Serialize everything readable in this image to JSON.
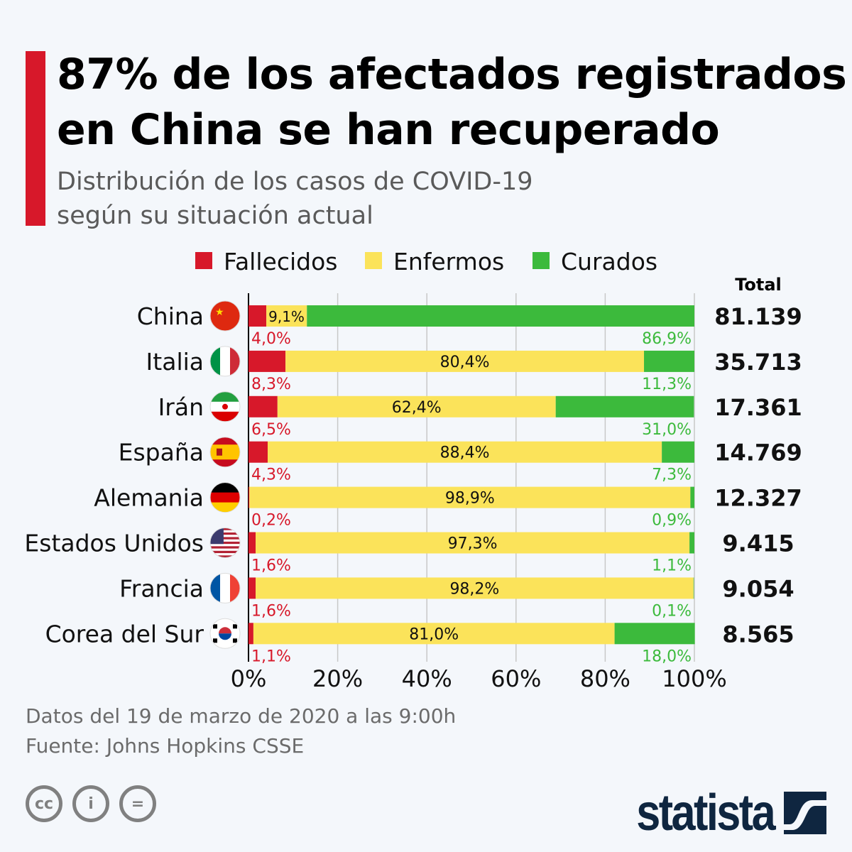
{
  "header": {
    "title_line1": "87% de los afectados registrados",
    "title_line2": "en China se han recuperado",
    "subtitle_line1": "Distribución de los casos de COVID-19",
    "subtitle_line2": "según su situación actual"
  },
  "footer": {
    "date_note": "Datos del 19 de marzo de 2020 a las 9:00h",
    "source": "Fuente: Johns Hopkins CSSE",
    "brand": "statista",
    "license_icons": [
      "cc-icon",
      "attribution-icon",
      "no-derivatives-icon"
    ]
  },
  "colors": {
    "fallecidos": "#d7182a",
    "enfermos": "#fbe35a",
    "curados": "#3cba3c",
    "accent": "#d7182a"
  },
  "chart_data": {
    "type": "bar",
    "orientation": "horizontal",
    "stacked": "100%",
    "categories": [
      "China",
      "Italia",
      "Irán",
      "España",
      "Alemania",
      "Estados Unidos",
      "Francia",
      "Corea del Sur"
    ],
    "series": [
      {
        "name": "Fallecidos",
        "values": [
          4.0,
          8.3,
          6.5,
          4.3,
          0.2,
          1.6,
          1.6,
          1.1
        ],
        "labels": [
          "4,0%",
          "8,3%",
          "6,5%",
          "4,3%",
          "0,2%",
          "1,6%",
          "1,6%",
          "1,1%"
        ]
      },
      {
        "name": "Enfermos",
        "values": [
          9.1,
          80.4,
          62.4,
          88.4,
          98.9,
          97.3,
          98.2,
          81.0
        ],
        "labels": [
          "9,1%",
          "80,4%",
          "62,4%",
          "88,4%",
          "98,9%",
          "97,3%",
          "98,2%",
          "81,0%"
        ]
      },
      {
        "name": "Curados",
        "values": [
          86.9,
          11.3,
          31.0,
          7.3,
          0.9,
          1.1,
          0.1,
          18.0
        ],
        "labels": [
          "86,9%",
          "11,3%",
          "31,0%",
          "7,3%",
          "0,9%",
          "1,1%",
          "0,1%",
          "18,0%"
        ]
      }
    ],
    "totals_header": "Total",
    "totals": [
      "81.139",
      "35.713",
      "17.361",
      "14.769",
      "12.327",
      "9.415",
      "9.054",
      "8.565"
    ],
    "flags": [
      "china-flag-icon",
      "italy-flag-icon",
      "iran-flag-icon",
      "spain-flag-icon",
      "germany-flag-icon",
      "usa-flag-icon",
      "france-flag-icon",
      "south-korea-flag-icon"
    ],
    "xlim": [
      0,
      100
    ],
    "xticks": [
      "0%",
      "20%",
      "40%",
      "60%",
      "80%",
      "100%"
    ],
    "grid": true,
    "legend_position": "top"
  }
}
